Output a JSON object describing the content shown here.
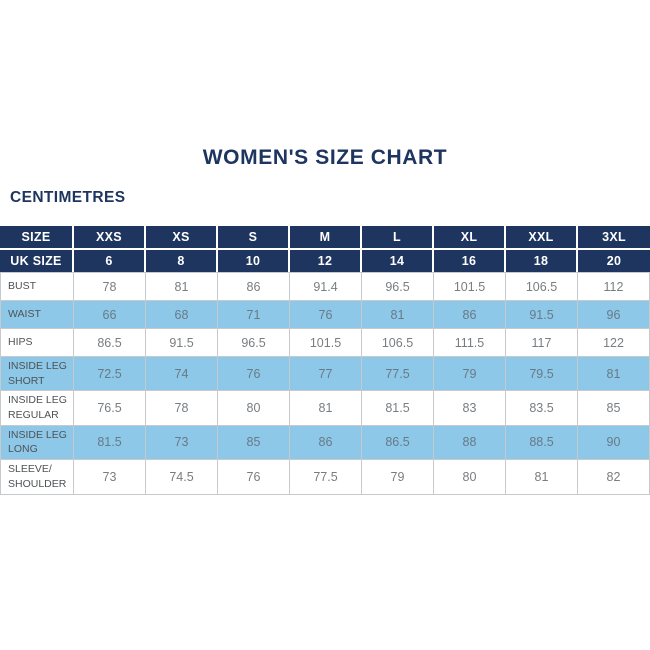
{
  "page": {
    "title": "WOMEN'S SIZE CHART",
    "unit_label": "CENTIMETRES"
  },
  "colors": {
    "navy": "#1e3560",
    "light_blue": "#8dc8e9",
    "border": "#c6cacd",
    "label_text": "#4f5254",
    "value_text": "#797d80",
    "header_text": "#ffffff"
  },
  "size_table": {
    "header_rows": [
      {
        "label": "SIZE",
        "values": [
          "XXS",
          "XS",
          "S",
          "M",
          "L",
          "XL",
          "XXL",
          "3XL"
        ]
      },
      {
        "label": "UK SIZE",
        "values": [
          "6",
          "8",
          "10",
          "12",
          "14",
          "16",
          "18",
          "20"
        ]
      }
    ],
    "rows": [
      {
        "label": "BUST",
        "highlight": false,
        "values": [
          "78",
          "81",
          "86",
          "91.4",
          "96.5",
          "101.5",
          "106.5",
          "112"
        ]
      },
      {
        "label": "WAIST",
        "highlight": true,
        "values": [
          "66",
          "68",
          "71",
          "76",
          "81",
          "86",
          "91.5",
          "96"
        ]
      },
      {
        "label": "HIPS",
        "highlight": false,
        "values": [
          "86.5",
          "91.5",
          "96.5",
          "101.5",
          "106.5",
          "111.5",
          "117",
          "122"
        ]
      },
      {
        "label": "INSIDE LEG\nSHORT",
        "highlight": true,
        "values": [
          "72.5",
          "74",
          "76",
          "77",
          "77.5",
          "79",
          "79.5",
          "81"
        ]
      },
      {
        "label": "INSIDE LEG\nREGULAR",
        "highlight": false,
        "values": [
          "76.5",
          "78",
          "80",
          "81",
          "81.5",
          "83",
          "83.5",
          "85"
        ]
      },
      {
        "label": "INSIDE LEG\nLONG",
        "highlight": true,
        "values": [
          "81.5",
          "73",
          "85",
          "86",
          "86.5",
          "88",
          "88.5",
          "90"
        ]
      },
      {
        "label": "SLEEVE/\nSHOULDER",
        "highlight": false,
        "values": [
          "73",
          "74.5",
          "76",
          "77.5",
          "79",
          "80",
          "81",
          "82"
        ]
      }
    ]
  },
  "chart_data": {
    "type": "table",
    "title": "WOMEN'S SIZE CHART",
    "unit": "CENTIMETRES",
    "columns": [
      "SIZE",
      "XXS",
      "XS",
      "S",
      "M",
      "L",
      "XL",
      "XXL",
      "3XL"
    ],
    "uk_sizes": [
      6,
      8,
      10,
      12,
      14,
      16,
      18,
      20
    ],
    "rows": [
      {
        "measurement": "BUST",
        "values": [
          78,
          81,
          86,
          91.4,
          96.5,
          101.5,
          106.5,
          112
        ]
      },
      {
        "measurement": "WAIST",
        "values": [
          66,
          68,
          71,
          76,
          81,
          86,
          91.5,
          96
        ]
      },
      {
        "measurement": "HIPS",
        "values": [
          86.5,
          91.5,
          96.5,
          101.5,
          106.5,
          111.5,
          117,
          122
        ]
      },
      {
        "measurement": "INSIDE LEG SHORT",
        "values": [
          72.5,
          74,
          76,
          77,
          77.5,
          79,
          79.5,
          81
        ]
      },
      {
        "measurement": "INSIDE LEG REGULAR",
        "values": [
          76.5,
          78,
          80,
          81,
          81.5,
          83,
          83.5,
          85
        ]
      },
      {
        "measurement": "INSIDE LEG LONG",
        "values": [
          81.5,
          73,
          85,
          86,
          86.5,
          88,
          88.5,
          90
        ]
      },
      {
        "measurement": "SLEEVE/SHOULDER",
        "values": [
          73,
          74.5,
          76,
          77.5,
          79,
          80,
          81,
          82
        ]
      }
    ]
  }
}
